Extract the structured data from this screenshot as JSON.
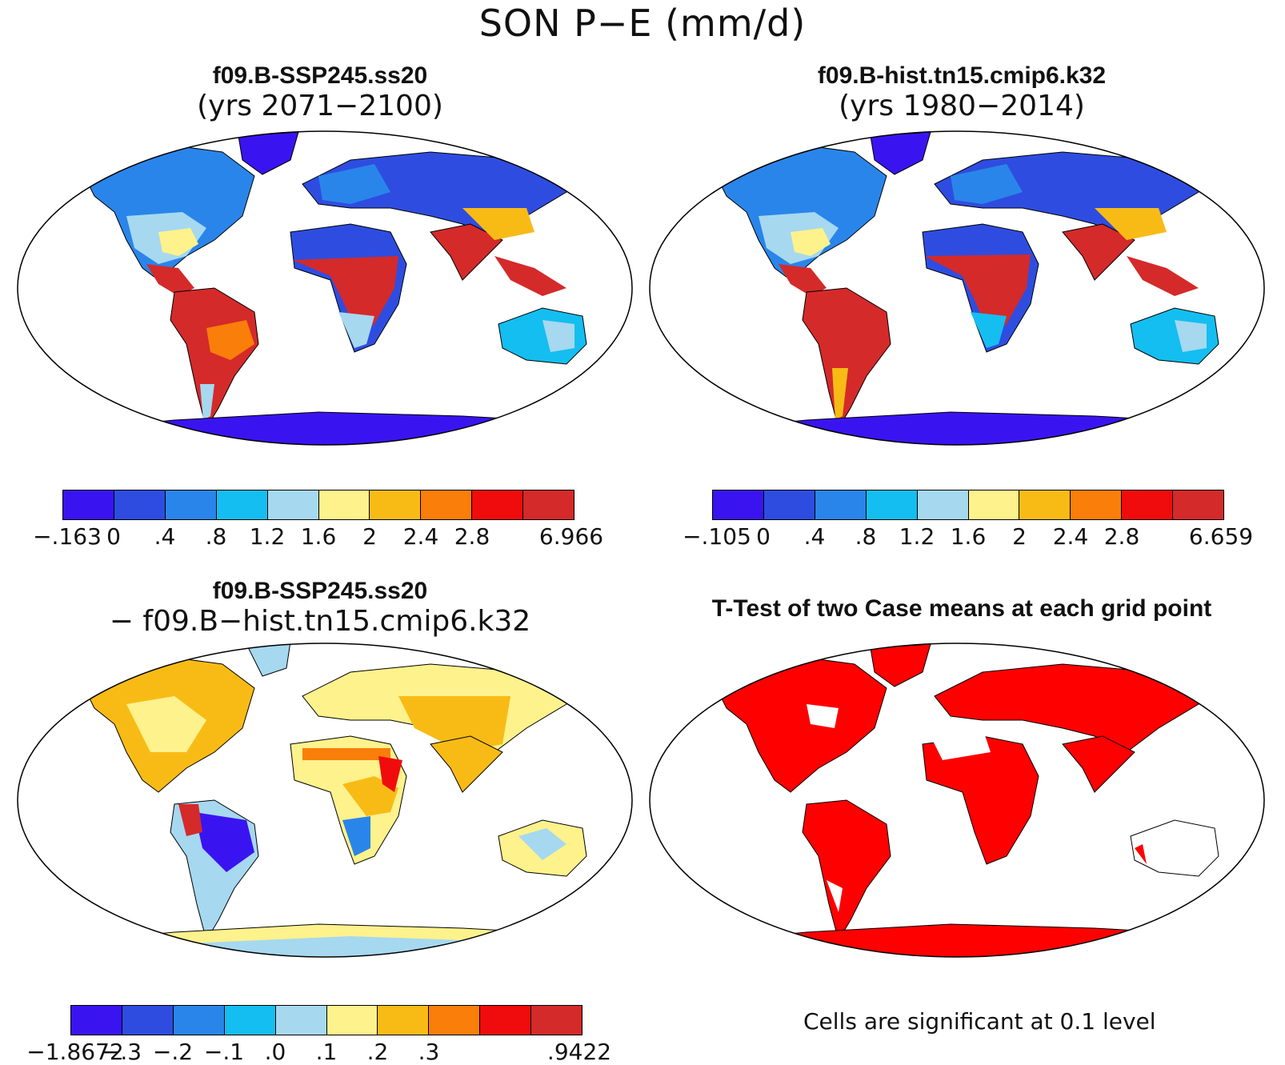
{
  "title": "SON P−E (mm/d)",
  "colors": [
    "#3a14f0",
    "#2e4de0",
    "#2a85ea",
    "#14bef0",
    "#a6d8f0",
    "#fdf28c",
    "#f8bb16",
    "#f97e0a",
    "#f00c0c",
    "#d42a2a"
  ],
  "panels": [
    {
      "id": "top-left",
      "title": "f09.B-SSP245.ss20",
      "subtitle": "(yrs 2071−2100)",
      "colorbar_ticks": [
        "−.163",
        "0",
        ".4",
        ".8",
        "1.2",
        "1.6",
        "2",
        "2.4",
        "2.8",
        "6.966"
      ]
    },
    {
      "id": "top-right",
      "title": "f09.B-hist.tn15.cmip6.k32",
      "subtitle": "(yrs 1980−2014)",
      "colorbar_ticks": [
        "−.105",
        "0",
        ".4",
        ".8",
        "1.2",
        "1.6",
        "2",
        "2.4",
        "2.8",
        "6.659"
      ]
    },
    {
      "id": "bottom-left",
      "title": "f09.B-SSP245.ss20",
      "subtitle": "− f09.B−hist.tn15.cmip6.k32",
      "colorbar_ticks": [
        "−1.8672",
        "−.3",
        "−.2",
        "−.1",
        ".0",
        ".1",
        ".2",
        ".3",
        ".9422"
      ]
    },
    {
      "id": "bottom-right",
      "title": "T-Test of two Case means at each grid point",
      "note": "Cells are significant at 0.1 level",
      "significant_color": "#ff0000"
    }
  ]
}
